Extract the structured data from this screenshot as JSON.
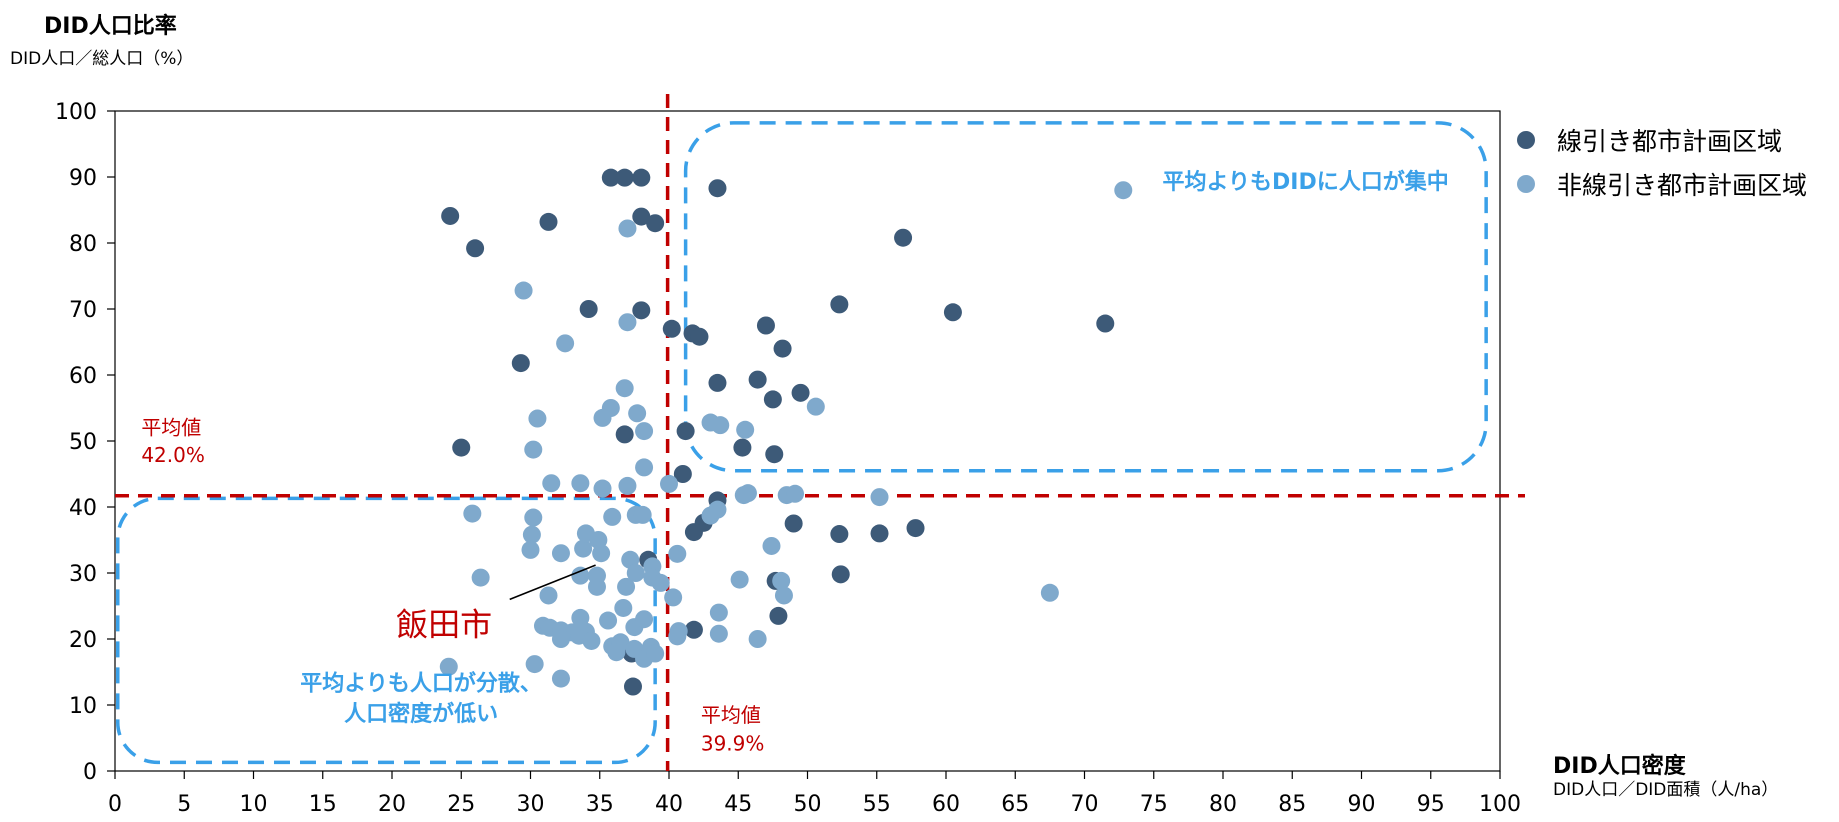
{
  "chart_data": {
    "type": "scatter",
    "title": "",
    "ylabel": "DID人口比率",
    "ysub": "DID人口／総人口（%）",
    "xlabel": "DID人口密度",
    "xsub": "DID人口／DID面積（人/ha）",
    "xlim": [
      0,
      100
    ],
    "ylim": [
      0,
      100
    ],
    "x_ticks": [
      "0",
      "5",
      "10",
      "15",
      "20",
      "25",
      "30",
      "35",
      "40",
      "45",
      "50",
      "55",
      "60",
      "65",
      "70",
      "75",
      "80",
      "85",
      "90",
      "95",
      "100"
    ],
    "y_ticks": [
      "0",
      "10",
      "20",
      "30",
      "40",
      "50",
      "60",
      "70",
      "80",
      "90",
      "100"
    ],
    "grid": false,
    "legend_position": "right",
    "avg_x": 39.9,
    "avg_y": 42.0,
    "avg_y_label": [
      "平均値",
      "42.0%"
    ],
    "avg_x_label": [
      "平均値",
      "39.9%"
    ],
    "region_high_label": "平均よりもDIDに人口が集中",
    "region_low_label": [
      "平均よりも人口が分散、",
      "人口密度が低い"
    ],
    "highlight_label": "飯田市",
    "highlight_point": {
      "x": 35.0,
      "y": 33.0
    },
    "colors": {
      "dark": "#3d5a78",
      "light": "#7fa9cc",
      "avg_line": "#c00000",
      "region": "#3aa0e8",
      "highlight_text": "#c00000"
    },
    "series": [
      {
        "name": "線引き都市計画区域",
        "color": "#3d5a78",
        "points": [
          [
            24.2,
            84.1
          ],
          [
            26,
            79.2
          ],
          [
            31.3,
            83.2
          ],
          [
            35.8,
            89.9
          ],
          [
            36.8,
            89.9
          ],
          [
            38,
            89.9
          ],
          [
            38,
            84
          ],
          [
            39,
            83
          ],
          [
            43.5,
            88.3
          ],
          [
            34.2,
            70
          ],
          [
            38,
            69.8
          ],
          [
            40.2,
            67
          ],
          [
            41.7,
            66.3
          ],
          [
            42.2,
            65.8
          ],
          [
            29.3,
            61.8
          ],
          [
            47,
            67.5
          ],
          [
            48.2,
            64
          ],
          [
            52.3,
            70.7
          ],
          [
            60.5,
            69.5
          ],
          [
            71.5,
            67.8
          ],
          [
            56.9,
            80.8
          ],
          [
            46.4,
            59.3
          ],
          [
            49.5,
            57.3
          ],
          [
            47.5,
            56.3
          ],
          [
            43.5,
            58.8
          ],
          [
            25,
            49
          ],
          [
            36.8,
            51
          ],
          [
            41.2,
            51.5
          ],
          [
            45.3,
            49
          ],
          [
            47.6,
            48
          ],
          [
            41,
            45
          ],
          [
            43.5,
            41
          ],
          [
            42.5,
            37.6
          ],
          [
            41.8,
            36.2
          ],
          [
            52.3,
            35.9
          ],
          [
            55.2,
            36
          ],
          [
            57.8,
            36.8
          ],
          [
            49,
            37.5
          ],
          [
            38.5,
            32
          ],
          [
            47.7,
            28.8
          ],
          [
            52.4,
            29.8
          ],
          [
            47.9,
            23.5
          ],
          [
            41.8,
            21.4
          ],
          [
            37.3,
            17.8
          ],
          [
            37.4,
            12.8
          ]
        ]
      },
      {
        "name": "非線引き都市計画区域",
        "color": "#7fa9cc",
        "points": [
          [
            72.8,
            88
          ],
          [
            37,
            82.2
          ],
          [
            29.5,
            72.8
          ],
          [
            32.5,
            64.8
          ],
          [
            37,
            68
          ],
          [
            36.8,
            58
          ],
          [
            35.8,
            55
          ],
          [
            35.2,
            53.5
          ],
          [
            37.7,
            54.2
          ],
          [
            38.2,
            51.5
          ],
          [
            30.5,
            53.4
          ],
          [
            30.2,
            48.7
          ],
          [
            38.2,
            46
          ],
          [
            31.5,
            43.6
          ],
          [
            33.6,
            43.6
          ],
          [
            35.2,
            42.8
          ],
          [
            37,
            43.2
          ],
          [
            40,
            43.5
          ],
          [
            50.6,
            55.2
          ],
          [
            43,
            52.8
          ],
          [
            43.7,
            52.4
          ],
          [
            45.5,
            51.7
          ],
          [
            45.4,
            41.8
          ],
          [
            45.7,
            42.1
          ],
          [
            48.5,
            41.8
          ],
          [
            49.1,
            42
          ],
          [
            55.2,
            41.5
          ],
          [
            25.8,
            39
          ],
          [
            30.2,
            38.4
          ],
          [
            35.9,
            38.5
          ],
          [
            37.6,
            38.8
          ],
          [
            38.1,
            38.8
          ],
          [
            43,
            38.7
          ],
          [
            43.5,
            39.6
          ],
          [
            30.1,
            35.8
          ],
          [
            30,
            33.5
          ],
          [
            32.2,
            33
          ],
          [
            33.8,
            33.7
          ],
          [
            34,
            36
          ],
          [
            34.9,
            35
          ],
          [
            35.1,
            33
          ],
          [
            37.2,
            32
          ],
          [
            38.8,
            31
          ],
          [
            40.6,
            32.9
          ],
          [
            37.6,
            30
          ],
          [
            33.6,
            29.6
          ],
          [
            34.8,
            29.6
          ],
          [
            26.4,
            29.3
          ],
          [
            34.8,
            27.9
          ],
          [
            36.9,
            27.9
          ],
          [
            38.8,
            29.3
          ],
          [
            39.4,
            28.5
          ],
          [
            40.3,
            26.3
          ],
          [
            45.1,
            29
          ],
          [
            47.4,
            34.1
          ],
          [
            48.1,
            28.8
          ],
          [
            48.3,
            26.6
          ],
          [
            67.5,
            27
          ],
          [
            31.3,
            26.6
          ],
          [
            36.7,
            24.7
          ],
          [
            35.6,
            22.8
          ],
          [
            37.5,
            21.8
          ],
          [
            38.2,
            23
          ],
          [
            33.6,
            23.2
          ],
          [
            30.9,
            22
          ],
          [
            31.4,
            21.7
          ],
          [
            32.2,
            21.3
          ],
          [
            33,
            21
          ],
          [
            34,
            21.1
          ],
          [
            32.2,
            20
          ],
          [
            33.5,
            20.5
          ],
          [
            34.4,
            19.7
          ],
          [
            35.9,
            18.9
          ],
          [
            36.5,
            19.5
          ],
          [
            36.2,
            18
          ],
          [
            37.5,
            18.5
          ],
          [
            38.2,
            17
          ],
          [
            38.7,
            18.8
          ],
          [
            39,
            17.8
          ],
          [
            40.7,
            21.2
          ],
          [
            40.6,
            20.4
          ],
          [
            43.6,
            24
          ],
          [
            43.6,
            20.8
          ],
          [
            46.4,
            20
          ],
          [
            30.3,
            16.2
          ],
          [
            32.2,
            14
          ],
          [
            24.1,
            15.8
          ]
        ]
      }
    ]
  }
}
